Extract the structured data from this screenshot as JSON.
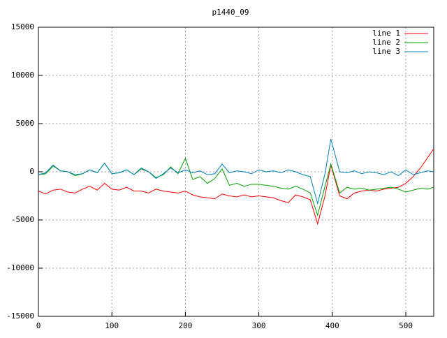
{
  "chart_data": {
    "type": "line",
    "title": "p1440_09",
    "x": [
      0,
      10,
      20,
      30,
      40,
      50,
      60,
      70,
      80,
      90,
      100,
      110,
      120,
      130,
      140,
      150,
      160,
      170,
      180,
      190,
      200,
      210,
      220,
      230,
      240,
      250,
      260,
      270,
      280,
      290,
      300,
      310,
      320,
      330,
      340,
      350,
      360,
      370,
      380,
      390,
      398,
      410,
      420,
      430,
      440,
      450,
      460,
      470,
      480,
      490,
      500,
      510,
      520,
      530,
      538
    ],
    "series": [
      {
        "name": "line 1",
        "color": "#ff0000",
        "values": [
          -2000,
          -2300,
          -1900,
          -1800,
          -2100,
          -2200,
          -1800,
          -1500,
          -1900,
          -1200,
          -1800,
          -1900,
          -1600,
          -2000,
          -2000,
          -2200,
          -1800,
          -2000,
          -2100,
          -2200,
          -2000,
          -2400,
          -2600,
          -2700,
          -2800,
          -2300,
          -2500,
          -2600,
          -2400,
          -2600,
          -2500,
          -2600,
          -2700,
          -3000,
          -3200,
          -2400,
          -2600,
          -2900,
          -5400,
          -2500,
          700,
          -2500,
          -2800,
          -2200,
          -2000,
          -1900,
          -2000,
          -1800,
          -1700,
          -1600,
          -1200,
          -500,
          400,
          1500,
          2400
        ]
      },
      {
        "name": "line 2",
        "color": "#00a000",
        "values": [
          -300,
          -200,
          600,
          100,
          0,
          -400,
          -200,
          200,
          -100,
          900,
          -200,
          -100,
          200,
          -300,
          300,
          0,
          -600,
          -300,
          500,
          -200,
          1400,
          -800,
          -500,
          -1200,
          -700,
          300,
          -1400,
          -1200,
          -1500,
          -1300,
          -1300,
          -1400,
          -1500,
          -1700,
          -1800,
          -1500,
          -1800,
          -2200,
          -4500,
          -1500,
          800,
          -2200,
          -1600,
          -1800,
          -1700,
          -1900,
          -1800,
          -1700,
          -1600,
          -1800,
          -2100,
          -1900,
          -1700,
          -1800,
          -1600
        ]
      },
      {
        "name": "line 3",
        "color": "#0080c0",
        "values": [
          -300,
          -100,
          700,
          100,
          0,
          -300,
          -200,
          200,
          -100,
          900,
          -200,
          -100,
          200,
          -300,
          400,
          0,
          -700,
          -200,
          400,
          -100,
          200,
          -100,
          100,
          -300,
          -200,
          800,
          -100,
          100,
          0,
          -200,
          200,
          0,
          100,
          -100,
          200,
          0,
          -300,
          -500,
          -3300,
          -200,
          3400,
          0,
          -100,
          100,
          -200,
          0,
          -100,
          -300,
          0,
          -400,
          200,
          -300,
          -100,
          100,
          0
        ]
      }
    ],
    "xlim": [
      0,
      538
    ],
    "ylim": [
      -15000,
      15000
    ],
    "xticks": [
      0,
      100,
      200,
      300,
      400,
      500
    ],
    "yticks": [
      -15000,
      -10000,
      -5000,
      0,
      5000,
      10000,
      15000
    ],
    "grid": true,
    "legend": "top-right"
  }
}
